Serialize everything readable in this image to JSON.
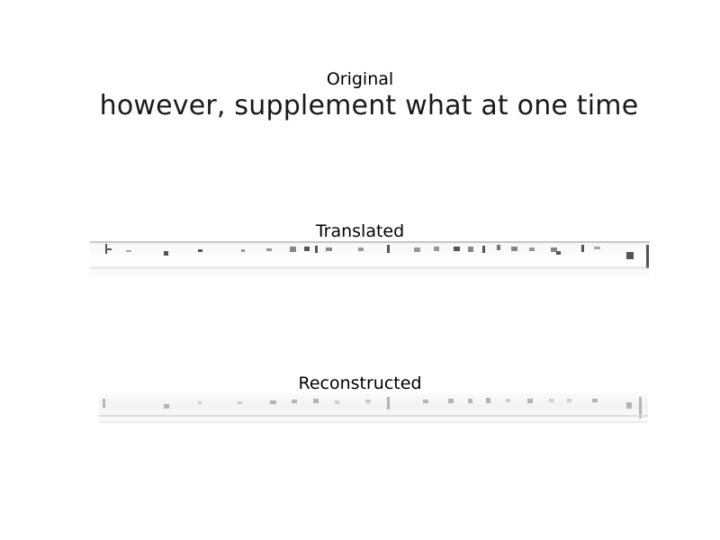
{
  "panels": {
    "original": {
      "title": "Original",
      "text": "however, supplement what at one time"
    },
    "translated": {
      "title": "Translated"
    },
    "reconstructed": {
      "title": "Reconstructed"
    }
  },
  "colors": {
    "background": "#ffffff",
    "text": "#000000",
    "ink": "#1a1a1a"
  }
}
